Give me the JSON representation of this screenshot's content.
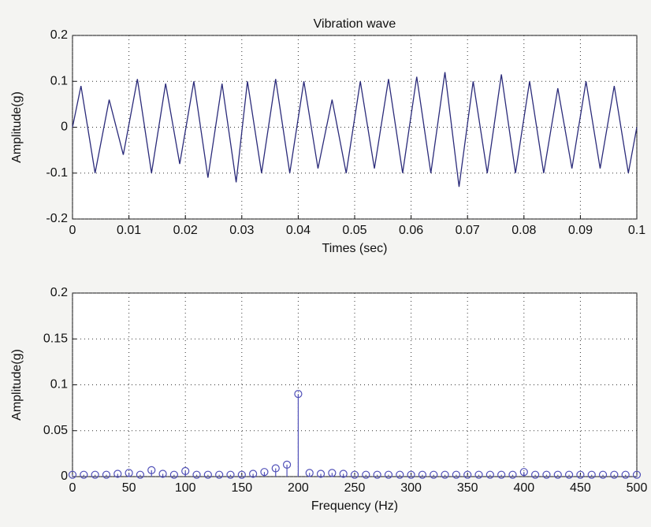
{
  "chart_data": [
    {
      "type": "line",
      "title": "Vibration wave",
      "xlabel": "Times (sec)",
      "ylabel": "Amplitude(g)",
      "color": "#2b2b7a",
      "x": [
        0,
        0.0015,
        0.004,
        0.0065,
        0.009,
        0.0115,
        0.014,
        0.0165,
        0.019,
        0.0215,
        0.024,
        0.0265,
        0.029,
        0.031,
        0.0335,
        0.036,
        0.0385,
        0.041,
        0.0435,
        0.046,
        0.0485,
        0.051,
        0.0535,
        0.056,
        0.0585,
        0.061,
        0.0635,
        0.066,
        0.0685,
        0.071,
        0.0735,
        0.076,
        0.0785,
        0.081,
        0.0835,
        0.086,
        0.0885,
        0.091,
        0.0935,
        0.096,
        0.0985,
        0.1
      ],
      "values": [
        0,
        0.09,
        -0.1,
        0.06,
        -0.06,
        0.105,
        -0.1,
        0.095,
        -0.08,
        0.1,
        -0.11,
        0.095,
        -0.12,
        0.1,
        -0.1,
        0.105,
        -0.1,
        0.1,
        -0.09,
        0.06,
        -0.1,
        0.1,
        -0.09,
        0.105,
        -0.1,
        0.11,
        -0.1,
        0.12,
        -0.13,
        0.1,
        -0.1,
        0.115,
        -0.1,
        0.1,
        -0.1,
        0.085,
        -0.09,
        0.1,
        -0.09,
        0.09,
        -0.1,
        0
      ],
      "xlim": [
        0,
        0.1
      ],
      "xticks": [
        0,
        0.01,
        0.02,
        0.03,
        0.04,
        0.05,
        0.06,
        0.07,
        0.08,
        0.09,
        0.1
      ],
      "ylim": [
        -0.2,
        0.2
      ],
      "yticks": [
        -0.2,
        -0.1,
        0,
        0.1,
        0.2
      ],
      "grid": true
    },
    {
      "type": "stem",
      "xlabel": "Frequency (Hz)",
      "ylabel": "Amplitude(g)",
      "color": "#5050b8",
      "x": [
        0,
        10,
        20,
        30,
        40,
        50,
        60,
        70,
        80,
        90,
        100,
        110,
        120,
        130,
        140,
        150,
        160,
        170,
        180,
        190,
        200,
        210,
        220,
        230,
        240,
        250,
        260,
        270,
        280,
        290,
        300,
        310,
        320,
        330,
        340,
        350,
        360,
        370,
        380,
        390,
        400,
        410,
        420,
        430,
        440,
        450,
        460,
        470,
        480,
        490,
        500
      ],
      "values": [
        0.002,
        0.002,
        0.002,
        0.002,
        0.003,
        0.004,
        0.002,
        0.007,
        0.003,
        0.002,
        0.006,
        0.002,
        0.002,
        0.002,
        0.002,
        0.002,
        0.003,
        0.005,
        0.009,
        0.013,
        0.09,
        0.004,
        0.003,
        0.004,
        0.003,
        0.002,
        0.002,
        0.002,
        0.002,
        0.002,
        0.002,
        0.002,
        0.002,
        0.002,
        0.002,
        0.002,
        0.002,
        0.002,
        0.002,
        0.002,
        0.005,
        0.002,
        0.002,
        0.002,
        0.002,
        0.002,
        0.002,
        0.002,
        0.002,
        0.002,
        0.002
      ],
      "xlim": [
        0,
        500
      ],
      "xticks": [
        0,
        50,
        100,
        150,
        200,
        250,
        300,
        350,
        400,
        450,
        500
      ],
      "ylim": [
        0,
        0.2
      ],
      "yticks": [
        0,
        0.05,
        0.1,
        0.15,
        0.2
      ],
      "grid": true
    }
  ]
}
